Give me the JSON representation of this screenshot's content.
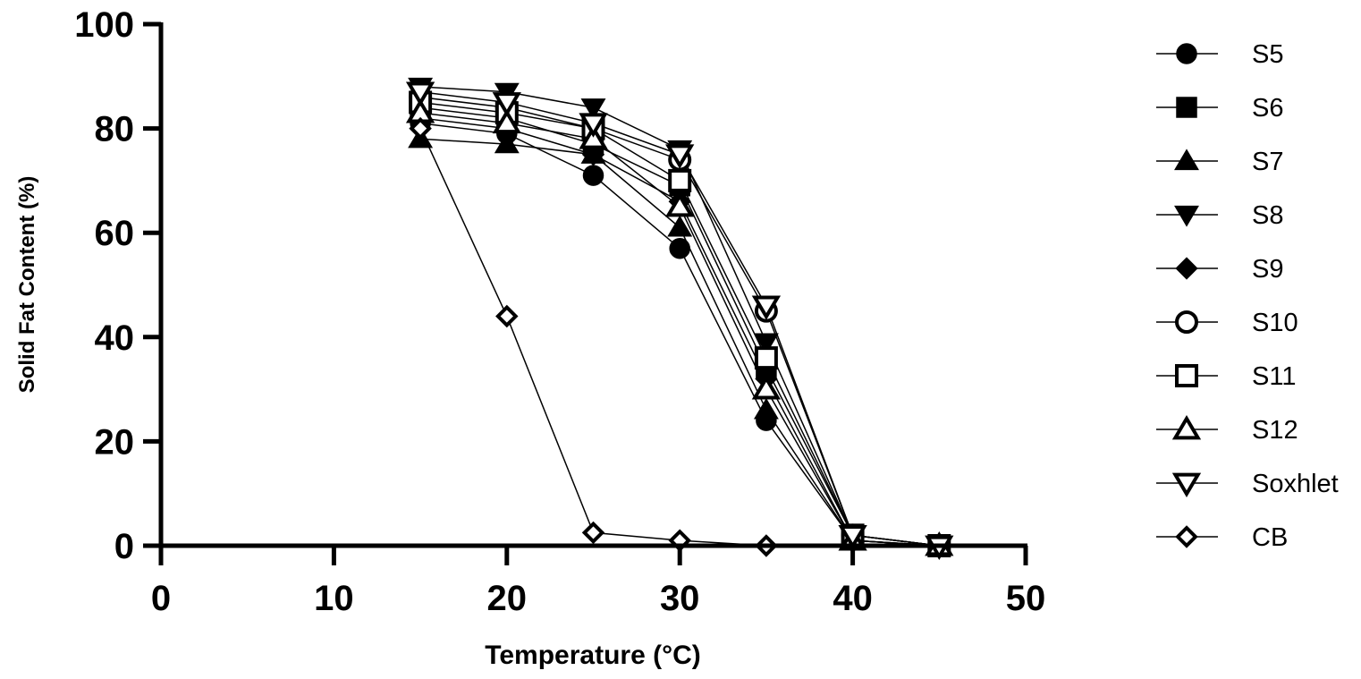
{
  "chart_data": {
    "type": "line",
    "xlabel": "Temperature (°C)",
    "ylabel": "Solid Fat Content (%)",
    "xlim": [
      0,
      50
    ],
    "ylim": [
      0,
      100
    ],
    "xticks": [
      "0",
      "10",
      "20",
      "30",
      "40",
      "50"
    ],
    "yticks": [
      "0",
      "20",
      "40",
      "60",
      "80",
      "100"
    ],
    "grid": false,
    "legend_position": "right",
    "series": [
      {
        "name": "S5",
        "marker": "circle-filled",
        "x": [
          15,
          20,
          25,
          30,
          35,
          40,
          45
        ],
        "y": [
          81,
          79,
          71,
          57,
          24,
          1,
          0
        ]
      },
      {
        "name": "S6",
        "marker": "square-filled",
        "x": [
          15,
          20,
          25,
          30,
          35,
          40,
          45
        ],
        "y": [
          84,
          82,
          77,
          69,
          34,
          2,
          0
        ]
      },
      {
        "name": "S7",
        "marker": "triangle-up-filled",
        "x": [
          15,
          20,
          25,
          30,
          35,
          40,
          45
        ],
        "y": [
          78,
          77,
          75,
          61,
          26,
          1,
          0
        ]
      },
      {
        "name": "S8",
        "marker": "triangle-down-filled",
        "x": [
          15,
          20,
          25,
          30,
          35,
          40,
          45
        ],
        "y": [
          88,
          87,
          84,
          76,
          39,
          2,
          0
        ]
      },
      {
        "name": "S9",
        "marker": "diamond-filled",
        "x": [
          15,
          20,
          25,
          30,
          35,
          40,
          45
        ],
        "y": [
          82,
          80,
          75,
          66,
          32,
          1,
          0
        ]
      },
      {
        "name": "S10",
        "marker": "circle-open",
        "x": [
          15,
          20,
          25,
          30,
          35,
          40,
          45
        ],
        "y": [
          86,
          84,
          80,
          74,
          45,
          2,
          0
        ]
      },
      {
        "name": "S11",
        "marker": "square-open",
        "x": [
          15,
          20,
          25,
          30,
          35,
          40,
          45
        ],
        "y": [
          85,
          83,
          80,
          70,
          36,
          2,
          0
        ]
      },
      {
        "name": "S12",
        "marker": "triangle-up-open",
        "x": [
          15,
          20,
          25,
          30,
          35,
          40,
          45
        ],
        "y": [
          83,
          81,
          78,
          65,
          30,
          1,
          0
        ]
      },
      {
        "name": "Soxhlet",
        "marker": "triangle-down-open",
        "x": [
          15,
          20,
          25,
          30,
          35,
          40,
          45
        ],
        "y": [
          87,
          85,
          81,
          75,
          46,
          2,
          0
        ]
      },
      {
        "name": "CB",
        "marker": "diamond-open",
        "x": [
          15,
          20,
          25,
          30,
          35
        ],
        "y": [
          80,
          44,
          2.5,
          1,
          0
        ]
      }
    ]
  }
}
